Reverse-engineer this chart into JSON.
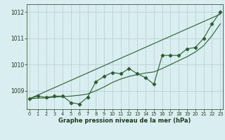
{
  "x": [
    0,
    1,
    2,
    3,
    4,
    5,
    6,
    7,
    8,
    9,
    10,
    11,
    12,
    13,
    14,
    15,
    16,
    17,
    18,
    19,
    20,
    21,
    22,
    23
  ],
  "y_main": [
    1008.7,
    1008.8,
    1008.75,
    1008.8,
    1008.8,
    1008.55,
    1008.5,
    1008.75,
    1009.35,
    1009.55,
    1009.7,
    1009.65,
    1009.85,
    1009.65,
    1009.5,
    1009.25,
    1010.35,
    1010.35,
    1010.35,
    1010.6,
    1010.65,
    1011.0,
    1011.55,
    1012.0
  ],
  "y_smooth": [
    1008.7,
    1008.72,
    1008.73,
    1008.76,
    1008.78,
    1008.8,
    1008.83,
    1008.88,
    1009.0,
    1009.15,
    1009.32,
    1009.45,
    1009.55,
    1009.62,
    1009.68,
    1009.72,
    1009.85,
    1010.0,
    1010.15,
    1010.3,
    1010.48,
    1010.72,
    1011.1,
    1011.55
  ],
  "y_linear": [
    1008.7,
    1008.84,
    1008.98,
    1009.12,
    1009.26,
    1009.4,
    1009.54,
    1009.68,
    1009.82,
    1009.96,
    1010.1,
    1010.24,
    1010.38,
    1010.52,
    1010.66,
    1010.8,
    1010.94,
    1011.08,
    1011.22,
    1011.36,
    1011.5,
    1011.64,
    1011.78,
    1011.92
  ],
  "bg_color": "#d8eef0",
  "line_color": "#2d5e2d",
  "grid_color": "#b8d4d4",
  "text_color": "#1a3a1a",
  "xlabel": "Graphe pression niveau de la mer (hPa)",
  "ylim": [
    1008.3,
    1012.3
  ],
  "yticks": [
    1009,
    1010,
    1011,
    1012
  ],
  "xticks": [
    0,
    1,
    2,
    3,
    4,
    5,
    6,
    7,
    8,
    9,
    10,
    11,
    12,
    13,
    14,
    15,
    16,
    17,
    18,
    19,
    20,
    21,
    22,
    23
  ]
}
